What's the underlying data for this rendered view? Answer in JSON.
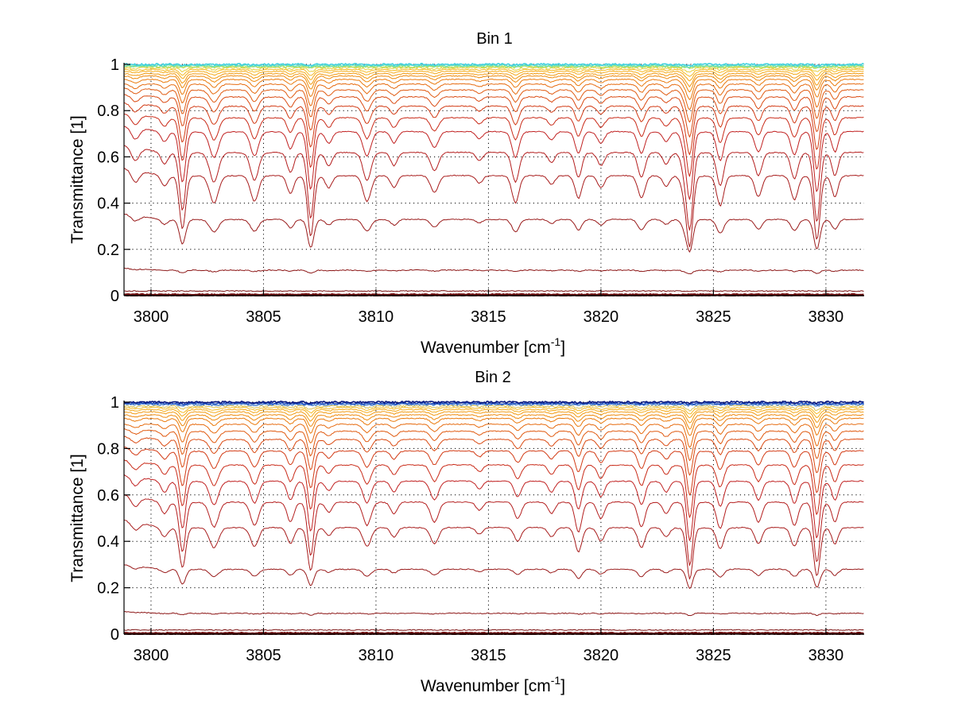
{
  "chart_data": [
    {
      "type": "line",
      "title": "Bin 1",
      "xlabel": "Wavenumber [cm",
      "xlabel_sup": "-1",
      "xlabel_end": "]",
      "ylabel": "Transmittance [1]",
      "xlim": [
        3798.8,
        3831.7
      ],
      "ylim": [
        0,
        1
      ],
      "grid": true,
      "xticks": [
        3800,
        3805,
        3810,
        3815,
        3820,
        3825,
        3830
      ],
      "xtick_labels": [
        "3800",
        "3805",
        "3810",
        "3815",
        "3820",
        "3825",
        "3830"
      ],
      "yticks": [
        0,
        0.2,
        0.4,
        0.6,
        0.8,
        1
      ],
      "ytick_labels": [
        "0",
        "0.2",
        "0.4",
        "0.6",
        "0.8",
        "1"
      ],
      "series_baselines": [
        0.0,
        0.005,
        0.02,
        0.11,
        0.33,
        0.52,
        0.62,
        0.71,
        0.77,
        0.82,
        0.86,
        0.89,
        0.915,
        0.935,
        0.95,
        0.96,
        0.97,
        0.978,
        0.985,
        0.99,
        0.995,
        1.0
      ],
      "series_colors": [
        "#5a0000",
        "#6b0a0a",
        "#7a1010",
        "#8b1414",
        "#991a1a",
        "#a81c1c",
        "#b41e1e",
        "#c02020",
        "#c92a18",
        "#d23a14",
        "#da4a12",
        "#e05a10",
        "#e66a0e",
        "#ea7a0c",
        "#ee8a0c",
        "#f29a10",
        "#f4aa18",
        "#f6ba24",
        "#e8d040",
        "#b8e060",
        "#70e0b0",
        "#40d0e0"
      ],
      "absorption_lines": [
        {
          "x": 3799.3,
          "depth": 0.08,
          "width": 0.18
        },
        {
          "x": 3800.6,
          "depth": 0.07,
          "width": 0.15
        },
        {
          "x": 3801.4,
          "depth": 0.35,
          "width": 0.14
        },
        {
          "x": 3802.8,
          "depth": 0.18,
          "width": 0.2
        },
        {
          "x": 3804.6,
          "depth": 0.17,
          "width": 0.18
        },
        {
          "x": 3806.2,
          "depth": 0.12,
          "width": 0.15
        },
        {
          "x": 3807.1,
          "depth": 0.4,
          "width": 0.14
        },
        {
          "x": 3807.9,
          "depth": 0.08,
          "width": 0.15
        },
        {
          "x": 3809.6,
          "depth": 0.17,
          "width": 0.18
        },
        {
          "x": 3810.8,
          "depth": 0.08,
          "width": 0.15
        },
        {
          "x": 3812.6,
          "depth": 0.11,
          "width": 0.18
        },
        {
          "x": 3814.6,
          "depth": 0.05,
          "width": 0.15
        },
        {
          "x": 3816.2,
          "depth": 0.18,
          "width": 0.16
        },
        {
          "x": 3817.8,
          "depth": 0.06,
          "width": 0.15
        },
        {
          "x": 3819.0,
          "depth": 0.15,
          "width": 0.15
        },
        {
          "x": 3820.0,
          "depth": 0.08,
          "width": 0.16
        },
        {
          "x": 3821.8,
          "depth": 0.15,
          "width": 0.16
        },
        {
          "x": 3822.9,
          "depth": 0.07,
          "width": 0.15
        },
        {
          "x": 3823.7,
          "depth": 0.1,
          "width": 0.14
        },
        {
          "x": 3823.95,
          "depth": 0.45,
          "width": 0.14
        },
        {
          "x": 3825.3,
          "depth": 0.2,
          "width": 0.16
        },
        {
          "x": 3827.0,
          "depth": 0.14,
          "width": 0.16
        },
        {
          "x": 3828.6,
          "depth": 0.16,
          "width": 0.16
        },
        {
          "x": 3829.6,
          "depth": 0.42,
          "width": 0.14
        },
        {
          "x": 3830.4,
          "depth": 0.14,
          "width": 0.14
        }
      ]
    },
    {
      "type": "line",
      "title": "Bin 2",
      "xlabel": "Wavenumber [cm",
      "xlabel_sup": "-1",
      "xlabel_end": "]",
      "ylabel": "Transmittance [1]",
      "xlim": [
        3798.8,
        3831.7
      ],
      "ylim": [
        0,
        1
      ],
      "grid": true,
      "xticks": [
        3800,
        3805,
        3810,
        3815,
        3820,
        3825,
        3830
      ],
      "xtick_labels": [
        "3800",
        "3805",
        "3810",
        "3815",
        "3820",
        "3825",
        "3830"
      ],
      "yticks": [
        0,
        0.2,
        0.4,
        0.6,
        0.8,
        1
      ],
      "ytick_labels": [
        "0",
        "0.2",
        "0.4",
        "0.6",
        "0.8",
        "1"
      ],
      "series_baselines": [
        0.0,
        0.005,
        0.018,
        0.09,
        0.28,
        0.46,
        0.57,
        0.66,
        0.73,
        0.79,
        0.84,
        0.875,
        0.905,
        0.93,
        0.945,
        0.958,
        0.968,
        0.976,
        0.983,
        0.99,
        0.995,
        1.0
      ],
      "series_colors": [
        "#5a0000",
        "#6b0a0a",
        "#7a1010",
        "#8b1414",
        "#991a1a",
        "#a81c1c",
        "#b41e1e",
        "#c02020",
        "#c92a18",
        "#d23a14",
        "#da4a12",
        "#e05a10",
        "#e66a0e",
        "#ea7a0c",
        "#ee8a0c",
        "#f29a10",
        "#f4aa18",
        "#f6ba24",
        "#d8c050",
        "#6090d0",
        "#2050c0",
        "#0a1a80"
      ],
      "absorption_lines": [
        {
          "x": 3799.3,
          "depth": 0.06,
          "width": 0.18
        },
        {
          "x": 3800.6,
          "depth": 0.07,
          "width": 0.15
        },
        {
          "x": 3801.4,
          "depth": 0.3,
          "width": 0.14
        },
        {
          "x": 3802.8,
          "depth": 0.15,
          "width": 0.2
        },
        {
          "x": 3804.6,
          "depth": 0.14,
          "width": 0.18
        },
        {
          "x": 3806.2,
          "depth": 0.12,
          "width": 0.15
        },
        {
          "x": 3807.1,
          "depth": 0.32,
          "width": 0.14
        },
        {
          "x": 3807.9,
          "depth": 0.06,
          "width": 0.15
        },
        {
          "x": 3809.6,
          "depth": 0.14,
          "width": 0.18
        },
        {
          "x": 3810.8,
          "depth": 0.07,
          "width": 0.15
        },
        {
          "x": 3812.6,
          "depth": 0.12,
          "width": 0.18
        },
        {
          "x": 3814.6,
          "depth": 0.05,
          "width": 0.15
        },
        {
          "x": 3816.3,
          "depth": 0.1,
          "width": 0.16
        },
        {
          "x": 3817.8,
          "depth": 0.07,
          "width": 0.15
        },
        {
          "x": 3819.0,
          "depth": 0.18,
          "width": 0.15
        },
        {
          "x": 3820.0,
          "depth": 0.1,
          "width": 0.16
        },
        {
          "x": 3821.8,
          "depth": 0.15,
          "width": 0.16
        },
        {
          "x": 3822.9,
          "depth": 0.07,
          "width": 0.15
        },
        {
          "x": 3823.95,
          "depth": 0.38,
          "width": 0.14
        },
        {
          "x": 3825.3,
          "depth": 0.16,
          "width": 0.16
        },
        {
          "x": 3827.0,
          "depth": 0.12,
          "width": 0.16
        },
        {
          "x": 3828.6,
          "depth": 0.14,
          "width": 0.16
        },
        {
          "x": 3829.6,
          "depth": 0.36,
          "width": 0.14
        },
        {
          "x": 3830.4,
          "depth": 0.12,
          "width": 0.14
        }
      ]
    }
  ]
}
